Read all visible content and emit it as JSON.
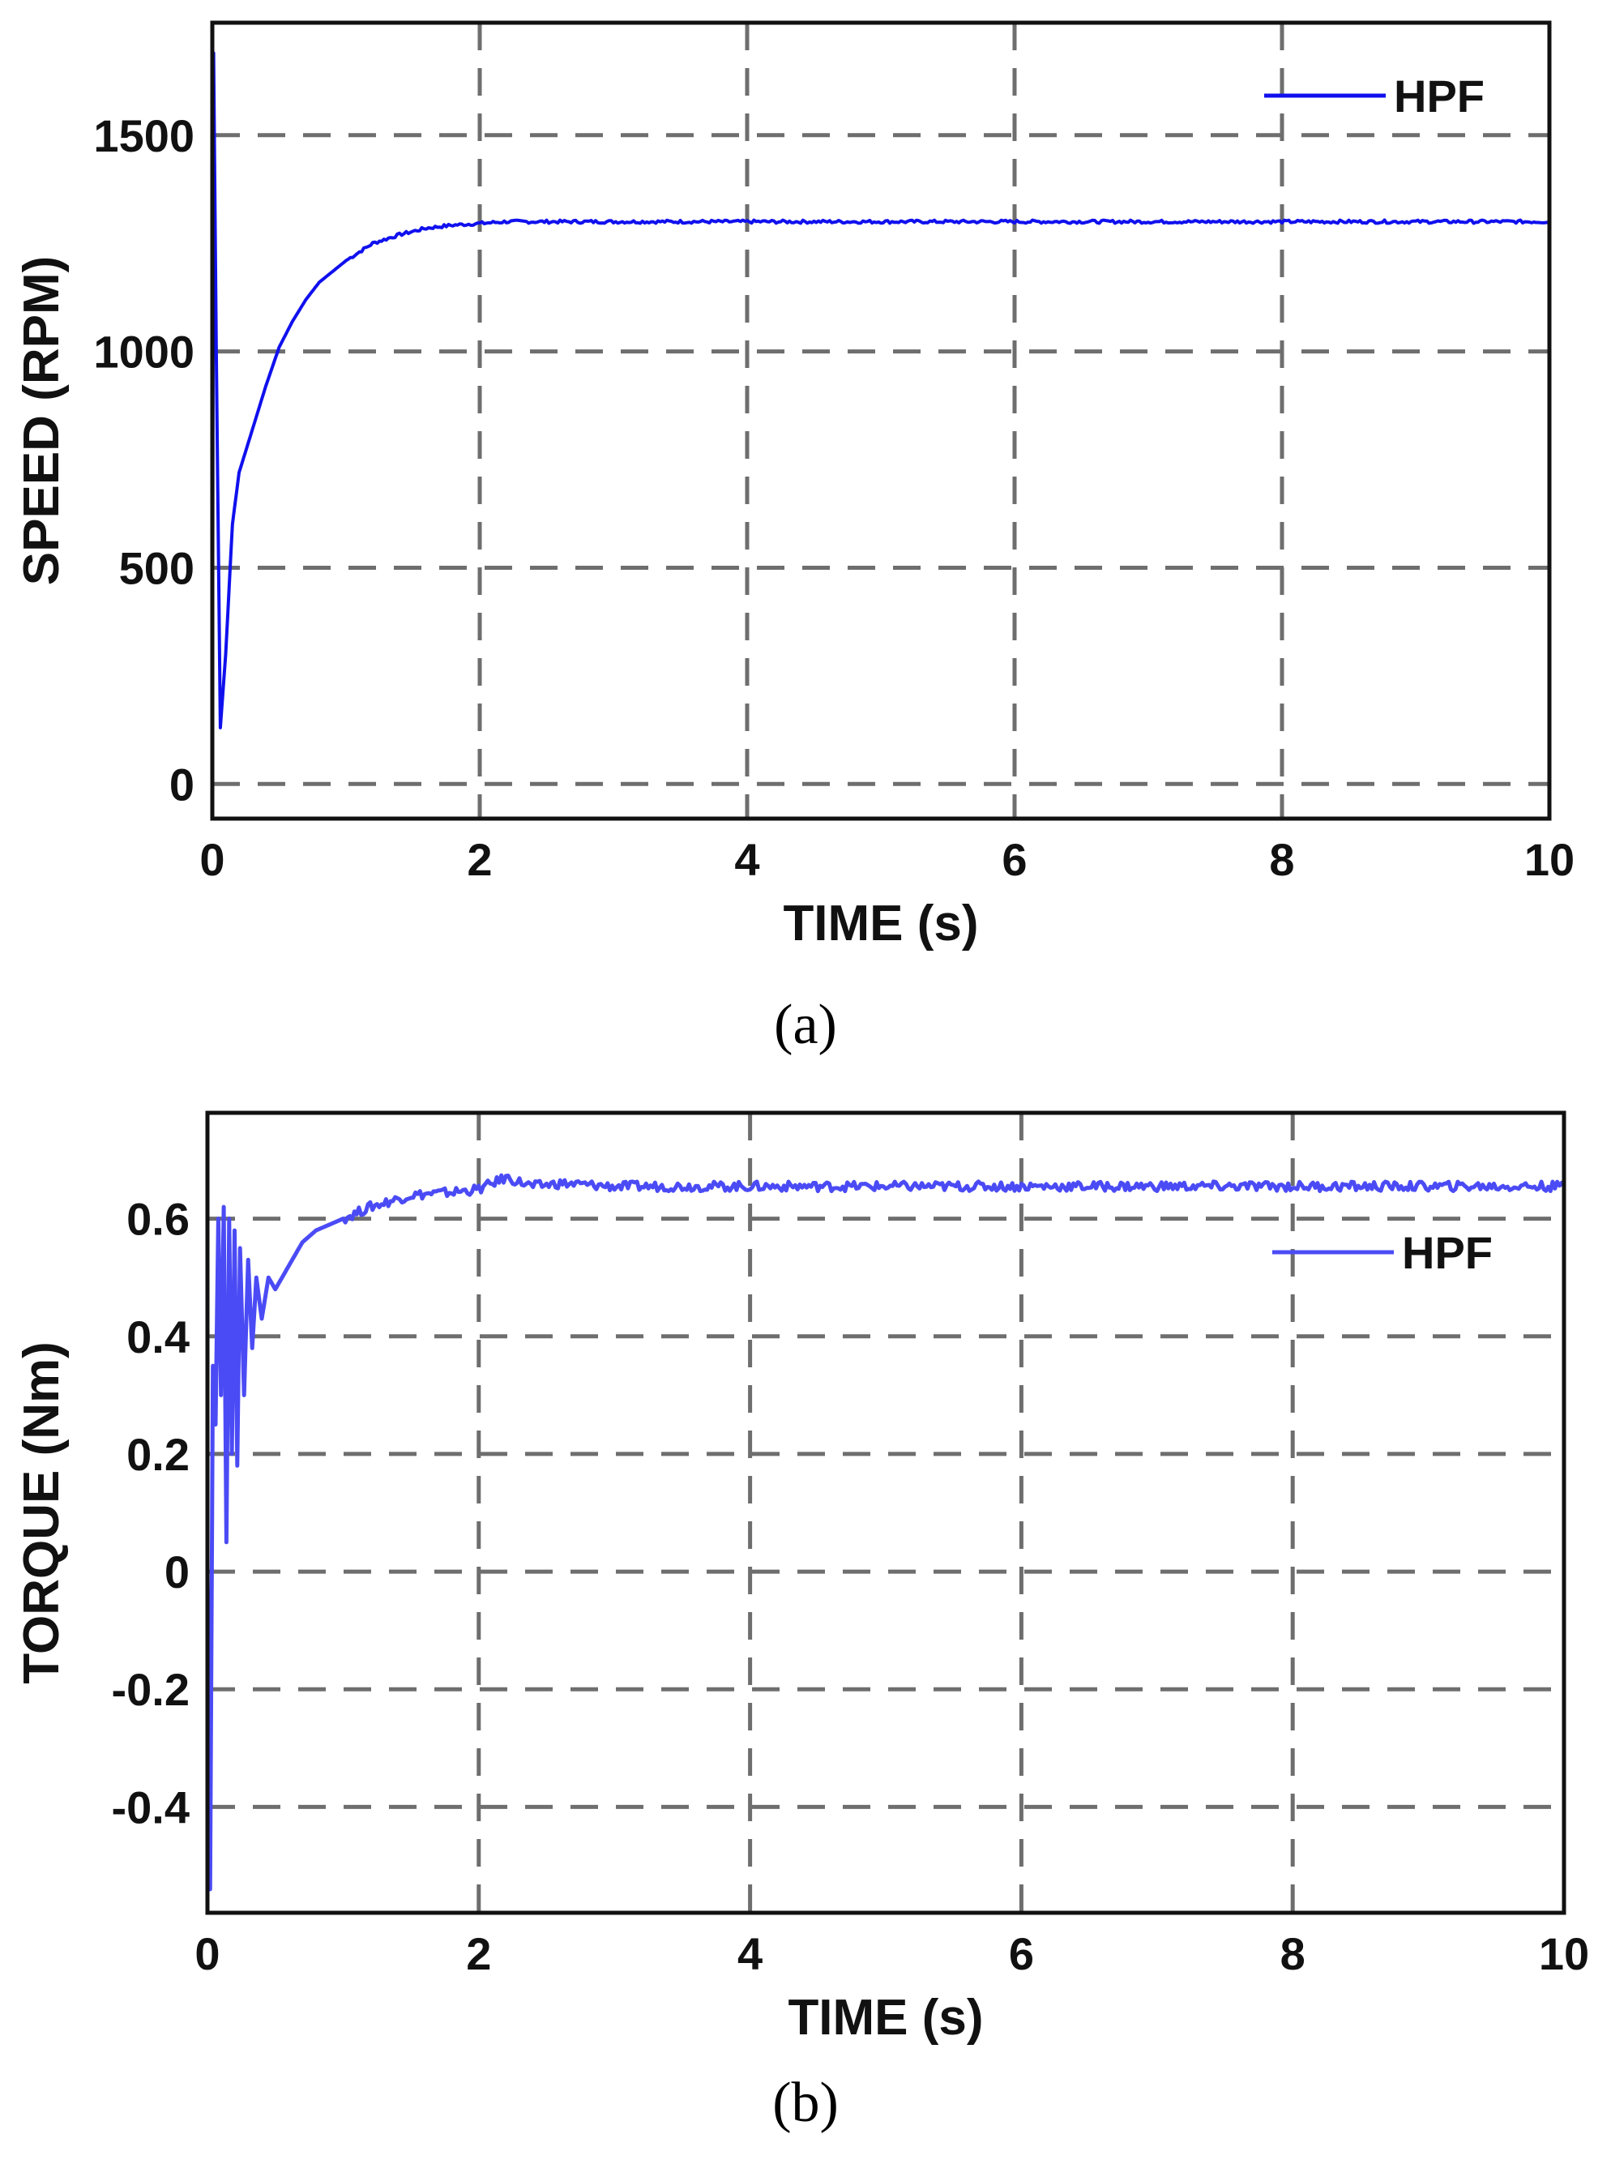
{
  "chart_data": [
    {
      "type": "line",
      "caption": "(a)",
      "xlabel": "TIME (s)",
      "ylabel": "SPEED (RPM)",
      "xlim": [
        0,
        10
      ],
      "ylim": [
        -80,
        1760
      ],
      "xticks": [
        0,
        2,
        4,
        6,
        8,
        10
      ],
      "yticks": [
        0,
        500,
        1000,
        1500
      ],
      "xtick_labels": [
        "0",
        "2",
        "4",
        "6",
        "8",
        "10"
      ],
      "ytick_labels": [
        "0",
        "500",
        "1000",
        "1500"
      ],
      "grid": true,
      "legend_position": "top-right",
      "color": "#1010ee",
      "series": [
        {
          "name": "HPF",
          "x": [
            0,
            0.01,
            0.03,
            0.06,
            0.1,
            0.15,
            0.2,
            0.3,
            0.4,
            0.5,
            0.6,
            0.7,
            0.8,
            1.0,
            1.2,
            1.4,
            1.6,
            1.8,
            2.0,
            2.2,
            2.5,
            3,
            4,
            5,
            6,
            7,
            8,
            9,
            10
          ],
          "y": [
            0,
            1690,
            1000,
            130,
            300,
            600,
            720,
            820,
            920,
            1010,
            1070,
            1120,
            1160,
            1210,
            1250,
            1270,
            1285,
            1292,
            1296,
            1300,
            1300,
            1300,
            1300,
            1300,
            1300,
            1300,
            1300,
            1300,
            1300
          ]
        }
      ]
    },
    {
      "type": "line",
      "caption": "(b)",
      "xlabel": "TIME (s)",
      "ylabel": "TORQUE (Nm)",
      "xlim": [
        0,
        10
      ],
      "ylim": [
        -0.58,
        0.78
      ],
      "xticks": [
        0,
        2,
        4,
        6,
        8,
        10
      ],
      "yticks": [
        -0.4,
        -0.2,
        0,
        0.2,
        0.4,
        0.6
      ],
      "xtick_labels": [
        "0",
        "2",
        "4",
        "6",
        "8",
        "10"
      ],
      "ytick_labels": [
        "-0.4",
        "-0.2",
        "0",
        "0.2",
        "0.4",
        "0.6"
      ],
      "grid": true,
      "legend_position": "top-right",
      "color": "#4b4bf5",
      "series": [
        {
          "name": "HPF",
          "x": [
            0,
            0.02,
            0.04,
            0.06,
            0.08,
            0.1,
            0.12,
            0.14,
            0.16,
            0.18,
            0.2,
            0.22,
            0.24,
            0.27,
            0.3,
            0.33,
            0.36,
            0.4,
            0.45,
            0.5,
            0.6,
            0.7,
            0.8,
            1.0,
            1.2,
            1.5,
            1.8,
            2.0,
            2.2,
            2.4,
            2.6,
            3,
            4,
            5,
            6,
            7,
            8,
            9,
            10
          ],
          "y": [
            0,
            -0.54,
            0.35,
            0.25,
            0.6,
            0.3,
            0.62,
            0.05,
            0.6,
            0.2,
            0.58,
            0.18,
            0.55,
            0.3,
            0.53,
            0.38,
            0.5,
            0.43,
            0.5,
            0.48,
            0.52,
            0.56,
            0.58,
            0.6,
            0.62,
            0.64,
            0.645,
            0.65,
            0.67,
            0.655,
            0.66,
            0.655,
            0.655,
            0.655,
            0.655,
            0.655,
            0.655,
            0.655,
            0.655
          ]
        }
      ]
    }
  ]
}
